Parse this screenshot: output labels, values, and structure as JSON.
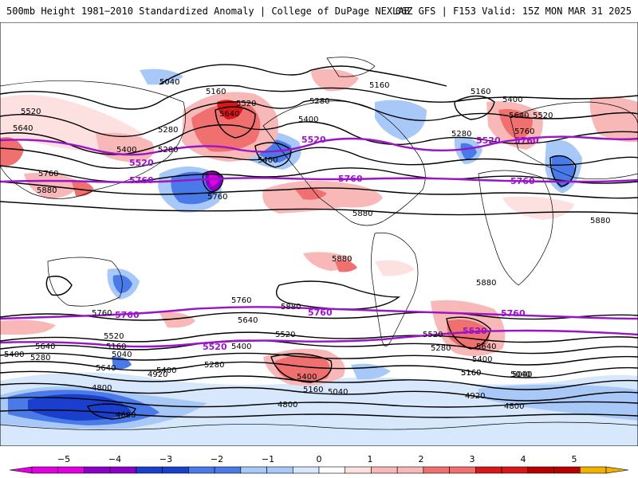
{
  "header": {
    "left": "500mb Height 1981−2010 Standardized Anomaly | College of DuPage NEXLAB",
    "right": "06Z GFS | F153 Valid: 15Z MON MAR 31 2025"
  },
  "colors": {
    "neg5": "#e000e0",
    "neg4": "#8a00c8",
    "neg3": "#1a3fcc",
    "neg2": "#4a7ae8",
    "neg1": "#a8c8f8",
    "neg05": "#d8e8fc",
    "zero": "#ffffff",
    "pos05": "#fde0e0",
    "pos1": "#f8b8b8",
    "pos2": "#f07070",
    "pos3": "#d81818",
    "pos4": "#b80000",
    "pos5": "#f0b000",
    "purple": "#9a14c8",
    "contour": "#000000"
  },
  "colorbar": {
    "ticks": [
      "−5",
      "−4",
      "−3",
      "−2",
      "−1",
      "0",
      "1",
      "2",
      "3",
      "4",
      "5"
    ]
  },
  "map": {
    "contour_labels": [
      {
        "id": "l5040a",
        "text": "5040"
      },
      {
        "id": "l5160a",
        "text": "5160"
      },
      {
        "id": "l5520a",
        "text": "5520"
      },
      {
        "id": "l5640a",
        "text": "5640"
      },
      {
        "id": "l5280a",
        "text": "5280"
      },
      {
        "id": "l5160b",
        "text": "5160"
      },
      {
        "id": "l5400a",
        "text": "5400"
      },
      {
        "id": "l5280b",
        "text": "5280"
      },
      {
        "id": "l5160c",
        "text": "5160"
      },
      {
        "id": "l5400b",
        "text": "5400"
      },
      {
        "id": "l5520b",
        "text": "5520"
      },
      {
        "id": "l5640b",
        "text": "5640"
      },
      {
        "id": "l5760a",
        "text": "5760"
      },
      {
        "id": "l5520c",
        "text": "5520"
      },
      {
        "id": "l5640c",
        "text": "5640"
      },
      {
        "id": "l5760b",
        "text": "5760"
      },
      {
        "id": "l5880a",
        "text": "5880"
      },
      {
        "id": "l5400c",
        "text": "5400"
      },
      {
        "id": "l5280c",
        "text": "5280"
      },
      {
        "id": "l5400d",
        "text": "5400"
      },
      {
        "id": "l5760c",
        "text": "5760"
      },
      {
        "id": "l5880b",
        "text": "5880"
      },
      {
        "id": "l5880c",
        "text": "5880"
      },
      {
        "id": "l5880d",
        "text": "5880"
      },
      {
        "id": "l5880e",
        "text": "5880"
      },
      {
        "id": "l5880f",
        "text": "5880"
      },
      {
        "id": "l5760d",
        "text": "5760"
      },
      {
        "id": "l5760e",
        "text": "5760"
      },
      {
        "id": "l5640d",
        "text": "5640"
      },
      {
        "id": "l5520d",
        "text": "5520"
      },
      {
        "id": "l5400e",
        "text": "5400"
      },
      {
        "id": "l5520e",
        "text": "5520"
      },
      {
        "id": "l5640e",
        "text": "5640"
      },
      {
        "id": "l5400f",
        "text": "5400"
      },
      {
        "id": "l5280d",
        "text": "5280"
      },
      {
        "id": "l5160d",
        "text": "5160"
      },
      {
        "id": "l5040b",
        "text": "5040"
      },
      {
        "id": "l5640f",
        "text": "5640"
      },
      {
        "id": "l5400g",
        "text": "5400"
      },
      {
        "id": "l5160e",
        "text": "5160"
      },
      {
        "id": "l5040c",
        "text": "5040"
      },
      {
        "id": "l5280e",
        "text": "5280"
      },
      {
        "id": "l5400h",
        "text": "5400"
      },
      {
        "id": "l4920a",
        "text": "4920"
      },
      {
        "id": "l4800a",
        "text": "4800"
      },
      {
        "id": "l4680a",
        "text": "4680"
      },
      {
        "id": "l5160f",
        "text": "5160"
      },
      {
        "id": "l5040d",
        "text": "5040"
      },
      {
        "id": "l5280f",
        "text": "5280"
      },
      {
        "id": "l5520f",
        "text": "5520"
      },
      {
        "id": "l5640g",
        "text": "5640"
      },
      {
        "id": "l5400i",
        "text": "5400"
      },
      {
        "id": "l5160g",
        "text": "5160"
      },
      {
        "id": "l5040e",
        "text": "5040"
      },
      {
        "id": "l4920b",
        "text": "4920"
      },
      {
        "id": "l4800b",
        "text": "4800"
      },
      {
        "id": "l4800c",
        "text": "4800"
      },
      {
        "id": "l5280g",
        "text": "5280"
      }
    ],
    "purple_labels": [
      {
        "id": "p5520a",
        "text": "5520"
      },
      {
        "id": "p5760a",
        "text": "5760"
      },
      {
        "id": "p5520b",
        "text": "5520"
      },
      {
        "id": "p5520c",
        "text": "5520"
      },
      {
        "id": "p5760b",
        "text": "5760"
      },
      {
        "id": "p5760c",
        "text": "5760"
      },
      {
        "id": "p5760d",
        "text": "5760"
      },
      {
        "id": "p5760e",
        "text": "5760"
      },
      {
        "id": "p5760f",
        "text": "5760"
      },
      {
        "id": "p5520d",
        "text": "5520"
      },
      {
        "id": "p5520e",
        "text": "5520"
      },
      {
        "id": "p5760g",
        "text": "5760"
      }
    ]
  }
}
